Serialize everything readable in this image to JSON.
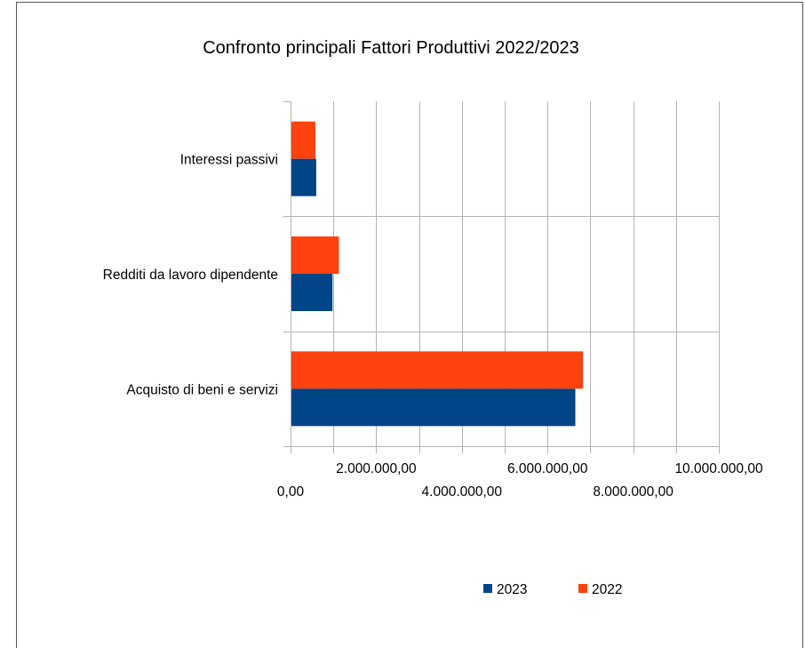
{
  "chart_data": {
    "type": "bar",
    "orientation": "horizontal",
    "title": "Confronto principali Fattori Produttivi 2022/2023",
    "xlabel": "",
    "ylabel": "",
    "categories": [
      "Acquisto di beni e servizi",
      "Redditi da lavoro dipendente",
      "Interessi passivi"
    ],
    "series": [
      {
        "name": "2023",
        "color": "#004586",
        "values": [
          6650000,
          980000,
          600000
        ]
      },
      {
        "name": "2022",
        "color": "#ff420e",
        "values": [
          6830000,
          1130000,
          580000
        ]
      }
    ],
    "xlim": [
      0,
      10000000
    ],
    "xticks": [
      {
        "value": 0,
        "label": "0,00"
      },
      {
        "value": 2000000,
        "label": "2.000.000,00"
      },
      {
        "value": 4000000,
        "label": "4.000.000,00"
      },
      {
        "value": 6000000,
        "label": "6.000.000,00"
      },
      {
        "value": 8000000,
        "label": "8.000.000,00"
      },
      {
        "value": 10000000,
        "label": "10.000.000,00"
      }
    ],
    "minor_gridlines_between_ticks": true,
    "grid": true,
    "legend_position": "bottom"
  }
}
